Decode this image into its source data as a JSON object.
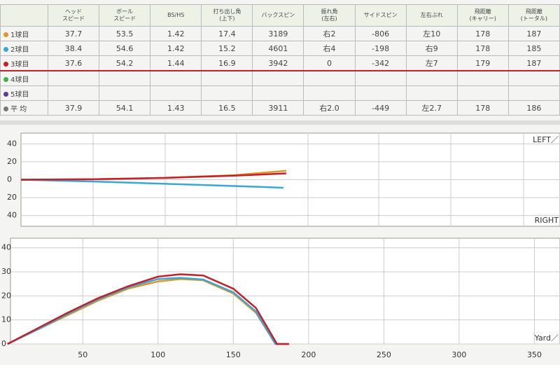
{
  "table": {
    "header": [
      "ヘッド\nスピード",
      "ボール\nスピード",
      "BS/HS",
      "打ち出し角\n(上下)",
      "バックスピン",
      "振れ角\n(左右)",
      "サイドスピン",
      "左右ぶれ",
      "飛距離\n(キャリー)",
      "飛距離\n(トータル)"
    ],
    "rows": [
      {
        "label": "1球目",
        "color": "#e0962a",
        "cells": [
          "37.7",
          "53.5",
          "1.42",
          "17.4",
          "3189",
          "右2",
          "-806",
          "左10",
          "178",
          "187"
        ]
      },
      {
        "label": "2球目",
        "color": "#3aa6d6",
        "cells": [
          "38.4",
          "54.6",
          "1.42",
          "15.2",
          "4601",
          "右4",
          "-198",
          "右9",
          "178",
          "185"
        ]
      },
      {
        "label": "3球目",
        "color": "#c4202a",
        "cells": [
          "37.6",
          "54.2",
          "1.44",
          "16.9",
          "3942",
          "0",
          "-342",
          "左7",
          "179",
          "187"
        ]
      },
      {
        "label": "4球目",
        "color": "#3cb04a",
        "cells": []
      },
      {
        "label": "5球目",
        "color": "#5a3c9a",
        "cells": []
      },
      {
        "label": "平 均",
        "color": "#777777",
        "cells": [
          "37.9",
          "54.1",
          "1.43",
          "16.5",
          "3911",
          "右2.0",
          "-449",
          "左2.7",
          "178",
          "186"
        ]
      }
    ]
  },
  "chart_data": [
    {
      "type": "line",
      "y_label_top": "LEFT／",
      "y_label_bottom": "RIGHT",
      "xlim": [
        0,
        380
      ],
      "ylim": [
        -52,
        52
      ],
      "yticks": [
        40,
        20,
        0,
        {
          "value": -20,
          "label": "20"
        },
        {
          "value": -40,
          "label": "40"
        }
      ],
      "series": [
        {
          "color": "#e0962a",
          "x": [
            0,
            50,
            100,
            150,
            187
          ],
          "values": [
            0,
            0.5,
            2,
            5,
            10
          ]
        },
        {
          "color": "#3aa6d6",
          "x": [
            0,
            50,
            100,
            150,
            185
          ],
          "values": [
            0,
            -2,
            -4.5,
            -7,
            -9
          ]
        },
        {
          "color": "#c4202a",
          "x": [
            0,
            50,
            100,
            150,
            187
          ],
          "values": [
            0,
            0.5,
            2,
            4.5,
            7
          ]
        }
      ]
    },
    {
      "type": "line",
      "x_label": "Yard／",
      "xlim": [
        2,
        367
      ],
      "ylim": [
        0,
        44
      ],
      "xticks": [
        50,
        100,
        150,
        200,
        250,
        300,
        350
      ],
      "yticks": [
        0,
        10,
        20,
        30,
        40
      ],
      "series": [
        {
          "color": "#e0962a",
          "x": [
            0,
            20,
            40,
            60,
            80,
            100,
            115,
            130,
            150,
            165,
            178,
            187
          ],
          "values": [
            0,
            6,
            12,
            18,
            23,
            26,
            27,
            26.5,
            21,
            13,
            0,
            0
          ]
        },
        {
          "color": "#3aa6d6",
          "x": [
            0,
            20,
            40,
            60,
            80,
            100,
            115,
            130,
            150,
            165,
            178,
            185
          ],
          "values": [
            0,
            6,
            12.5,
            18.5,
            23.5,
            27,
            27.5,
            26.8,
            21.5,
            13.5,
            0,
            0
          ]
        },
        {
          "color": "#c4202a",
          "x": [
            0,
            20,
            40,
            60,
            80,
            100,
            115,
            130,
            150,
            165,
            179,
            187
          ],
          "values": [
            0,
            6.5,
            13,
            19,
            24,
            28,
            29,
            28.5,
            23,
            15,
            0,
            0
          ]
        }
      ]
    }
  ]
}
